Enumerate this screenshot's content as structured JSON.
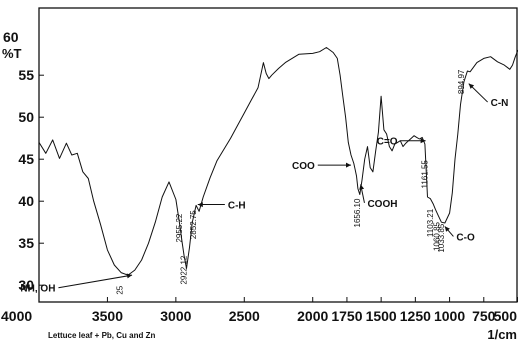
{
  "chart_data": {
    "type": "line",
    "caption": "Lettuce leaf  + Pb, Cu and Zn",
    "ylabel_top": "60",
    "ylabel_unit": "%T",
    "xlabel": "1/cm",
    "xlim": [
      4000,
      500
    ],
    "ylim": [
      28,
      63
    ],
    "x_ticks": [
      4000,
      3500,
      3000,
      2500,
      2000,
      1750,
      1500,
      1250,
      1000,
      750,
      500
    ],
    "y_ticks": [
      30,
      35,
      40,
      45,
      50,
      55
    ],
    "grid": false,
    "series": [
      {
        "x": [
          4000,
          3950,
          3900,
          3850,
          3800,
          3760,
          3720,
          3680,
          3640,
          3600,
          3550,
          3500,
          3450,
          3400,
          3350,
          3300,
          3250,
          3200,
          3150,
          3100,
          3050,
          3000,
          2970,
          2955,
          2940,
          2922,
          2900,
          2880,
          2852,
          2830,
          2800,
          2750,
          2700,
          2600,
          2500,
          2450,
          2400,
          2360,
          2340,
          2320,
          2300,
          2250,
          2200,
          2100,
          2000,
          1950,
          1900,
          1850,
          1820,
          1800,
          1780,
          1760,
          1740,
          1720,
          1700,
          1690,
          1680,
          1670,
          1656,
          1640,
          1620,
          1600,
          1580,
          1560,
          1540,
          1520,
          1500,
          1480,
          1460,
          1440,
          1420,
          1400,
          1380,
          1360,
          1340,
          1320,
          1300,
          1280,
          1260,
          1240,
          1220,
          1200,
          1180,
          1161,
          1140,
          1120,
          1103,
          1080,
          1060,
          1034,
          1000,
          980,
          960,
          940,
          920,
          895,
          870,
          850,
          800,
          750,
          700,
          650,
          600,
          560,
          540,
          520,
          500
        ],
        "y": [
          46.5,
          46.2,
          46.8,
          45.6,
          46.4,
          46.0,
          45.2,
          44.0,
          42.2,
          40.0,
          37.2,
          34.2,
          32.4,
          31.5,
          31.2,
          31.8,
          33.0,
          35.0,
          37.5,
          40.5,
          42.3,
          40.2,
          37.0,
          35.2,
          33.5,
          32.0,
          34.5,
          37.5,
          39.5,
          38.8,
          40.5,
          42.8,
          44.8,
          47.5,
          50.5,
          52.0,
          53.5,
          56.5,
          55.2,
          54.6,
          55.0,
          55.8,
          56.5,
          57.5,
          57.6,
          57.8,
          58.3,
          57.7,
          57.0,
          55.0,
          52.5,
          50.0,
          47.0,
          45.5,
          44.5,
          43.8,
          43.0,
          41.5,
          40.8,
          42.5,
          45.0,
          46.5,
          44.0,
          43.5,
          46.0,
          48.2,
          52.0,
          49.0,
          47.5,
          46.5,
          46.0,
          46.8,
          47.0,
          47.2,
          46.5,
          46.9,
          47.2,
          47.5,
          47.8,
          47.6,
          47.4,
          47.6,
          46.8,
          40.5,
          40.3,
          39.7,
          39.0,
          38.2,
          37.5,
          37.4,
          38.6,
          41.0,
          45.0,
          48.0,
          51.5,
          54.2,
          55.5,
          55.4,
          56.5,
          57.0,
          57.2,
          56.6,
          56.2,
          55.7,
          56.2,
          57.2,
          58.0
        ]
      }
    ],
    "annotations": [
      {
        "label": "NH, OH",
        "x": 3320,
        "y": 31.2,
        "tx": 3880,
        "ty": 29.7
      },
      {
        "label": "C-H",
        "x": 2840,
        "y": 39.6,
        "tx": 2620,
        "ty": 39.6
      },
      {
        "label": "COO",
        "x": 1720,
        "y": 44.3,
        "tx": 1985,
        "ty": 44.3
      },
      {
        "label": "COOH",
        "x": 1650,
        "y": 42.0,
        "tx": 1600,
        "ty": 39.8
      },
      {
        "label": "C=O",
        "x": 1175,
        "y": 47.2,
        "tx": 1380,
        "ty": 47.2
      },
      {
        "label": "C-O",
        "x": 1035,
        "y": 37.0,
        "tx": 950,
        "ty": 35.8
      },
      {
        "label": "C-N",
        "x": 860,
        "y": 54.0,
        "tx": 700,
        "ty": 51.8
      }
    ],
    "peak_labels": [
      {
        "label": "25",
        "x": 3390,
        "y": 29.4
      },
      {
        "label": "2955.22",
        "x": 2955,
        "y": 36.8
      },
      {
        "label": "2922.12",
        "x": 2922,
        "y": 31.8
      },
      {
        "label": "2852.75",
        "x": 2852,
        "y": 37.2
      },
      {
        "label": "1656.10",
        "x": 1656,
        "y": 38.6
      },
      {
        "label": "1161.55",
        "x": 1161,
        "y": 43.2
      },
      {
        "label": "1103.21",
        "x": 1120,
        "y": 37.4
      },
      {
        "label": "1060.85",
        "x": 1075,
        "y": 35.8
      },
      {
        "label": "1033.85",
        "x": 1040,
        "y": 35.6
      },
      {
        "label": "894.97",
        "x": 895,
        "y": 54.2
      }
    ]
  }
}
